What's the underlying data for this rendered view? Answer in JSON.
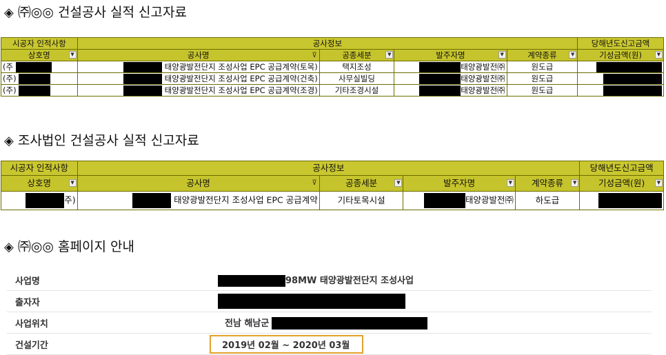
{
  "section1": {
    "title": "㈜◎◎ 건설공사 실적 신고자료",
    "group_contractor": "시공자 인적사항",
    "group_info": "공사정보",
    "group_amount": "당해년도신고금액",
    "headers": [
      "상호명",
      "공사명",
      "공종세분",
      "발주자명",
      "계약종류",
      "기성금액(원)"
    ],
    "rows": [
      {
        "company": "(주",
        "project": "태양광발전단지 조성사업 EPC 공급계약(토목)",
        "type": "택지조성",
        "client": "태양광발전㈜",
        "contract": "원도급"
      },
      {
        "company": "(주)",
        "project": "태양광발전단지 조성사업 EPC 공급계약(건축)",
        "type": "사무실빌딩",
        "client": "태양광발전㈜",
        "contract": "원도급"
      },
      {
        "company": "(주)",
        "project": "태양광발전단지 조성사업 EPC 공급계약(조경)",
        "type": "기타조경시설",
        "client": "태양광발전㈜",
        "contract": "원도급"
      }
    ]
  },
  "section2": {
    "title": "조사법인 건설공사 실적 신고자료",
    "group_contractor": "시공자 인적사항",
    "group_info": "공사정보",
    "group_amount": "당해년도신고금액",
    "headers": [
      "상호명",
      "공사명",
      "공종세분",
      "발주자명",
      "계약종류",
      "기성금액(원)"
    ],
    "rows": [
      {
        "company": "주)",
        "project": "태양광발전단지 조성사업 EPC 공급계약",
        "type": "기타토목시설",
        "client": "태양광발전㈜",
        "contract": "하도급"
      }
    ]
  },
  "section3": {
    "title": "㈜◎◎ 홈페이지 안내",
    "items": [
      {
        "label": "사업명",
        "value": "98MW 태양광발전단지 조성사업"
      },
      {
        "label": "출자자",
        "value": ""
      },
      {
        "label": "사업위치",
        "value": "전남 해남군"
      },
      {
        "label": "건설기간",
        "value": "2019년 02월 ~ 2020년 03월"
      }
    ]
  },
  "colors": {
    "header_olive": "#c9c72f",
    "highlight_orange": "#e3a12a",
    "redaction": "#000000"
  }
}
